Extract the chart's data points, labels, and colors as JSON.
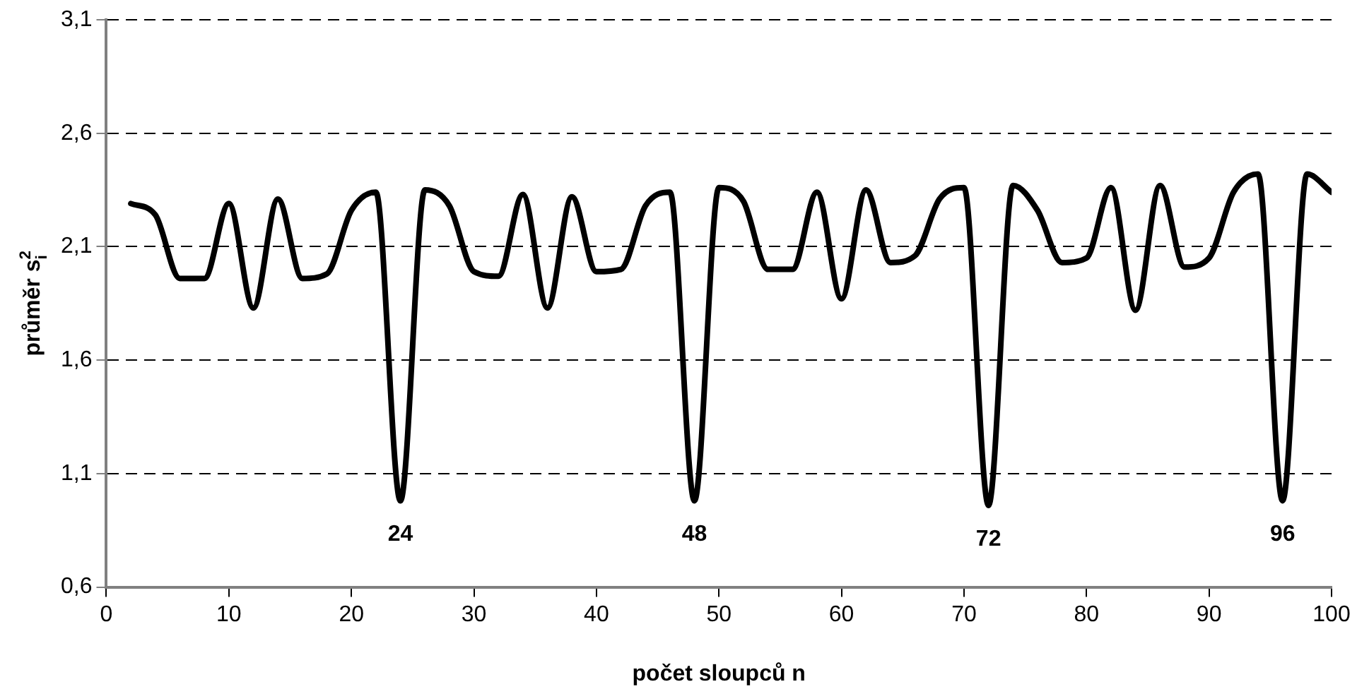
{
  "chart_data": {
    "type": "line",
    "xlabel": "počet sloupců n",
    "ylabel": "průměr s$_{i}$$^{2}$",
    "x": [
      2,
      4,
      6,
      8,
      10,
      12,
      14,
      16,
      18,
      20,
      22,
      24,
      26,
      28,
      30,
      32,
      34,
      36,
      38,
      40,
      42,
      44,
      46,
      48,
      50,
      52,
      54,
      56,
      58,
      60,
      62,
      64,
      66,
      68,
      70,
      72,
      74,
      76,
      78,
      80,
      82,
      84,
      86,
      88,
      90,
      92,
      94,
      96,
      98,
      100
    ],
    "series": [
      {
        "color": "#000000",
        "values": [
          2.29,
          2.24,
          1.96,
          1.96,
          2.29,
          1.83,
          2.31,
          1.96,
          1.98,
          2.26,
          2.34,
          0.98,
          2.35,
          2.28,
          1.99,
          1.97,
          2.33,
          1.83,
          2.32,
          1.99,
          2.0,
          2.28,
          2.34,
          0.98,
          2.36,
          2.3,
          2.0,
          2.0,
          2.34,
          1.87,
          2.35,
          2.03,
          2.06,
          2.31,
          2.36,
          0.96,
          2.37,
          2.26,
          2.03,
          2.05,
          2.36,
          1.82,
          2.37,
          2.01,
          2.05,
          2.34,
          2.42,
          0.98,
          2.42,
          2.34
        ]
      }
    ],
    "xlim": [
      0,
      100
    ],
    "xticks": [
      0,
      10,
      20,
      30,
      40,
      50,
      60,
      70,
      80,
      90,
      100
    ],
    "ylim": [
      0.6,
      3.1
    ],
    "yticks": [
      {
        "value": 0.6,
        "label": "0,6"
      },
      {
        "value": 1.1,
        "label": "1,1"
      },
      {
        "value": 1.6,
        "label": "1,6"
      },
      {
        "value": 2.1,
        "label": "2,1"
      },
      {
        "value": 2.6,
        "label": "2,6"
      },
      {
        "value": 3.1,
        "label": "3,1"
      }
    ],
    "grid": "y",
    "legend": false,
    "marker": "none",
    "line_style": "solid",
    "annotations": [
      {
        "text": "24",
        "x": 24,
        "y": 0.98
      },
      {
        "text": "48",
        "x": 48,
        "y": 0.98
      },
      {
        "text": "72",
        "x": 72,
        "y": 0.96
      },
      {
        "text": "96",
        "x": 96,
        "y": 0.98
      }
    ]
  }
}
